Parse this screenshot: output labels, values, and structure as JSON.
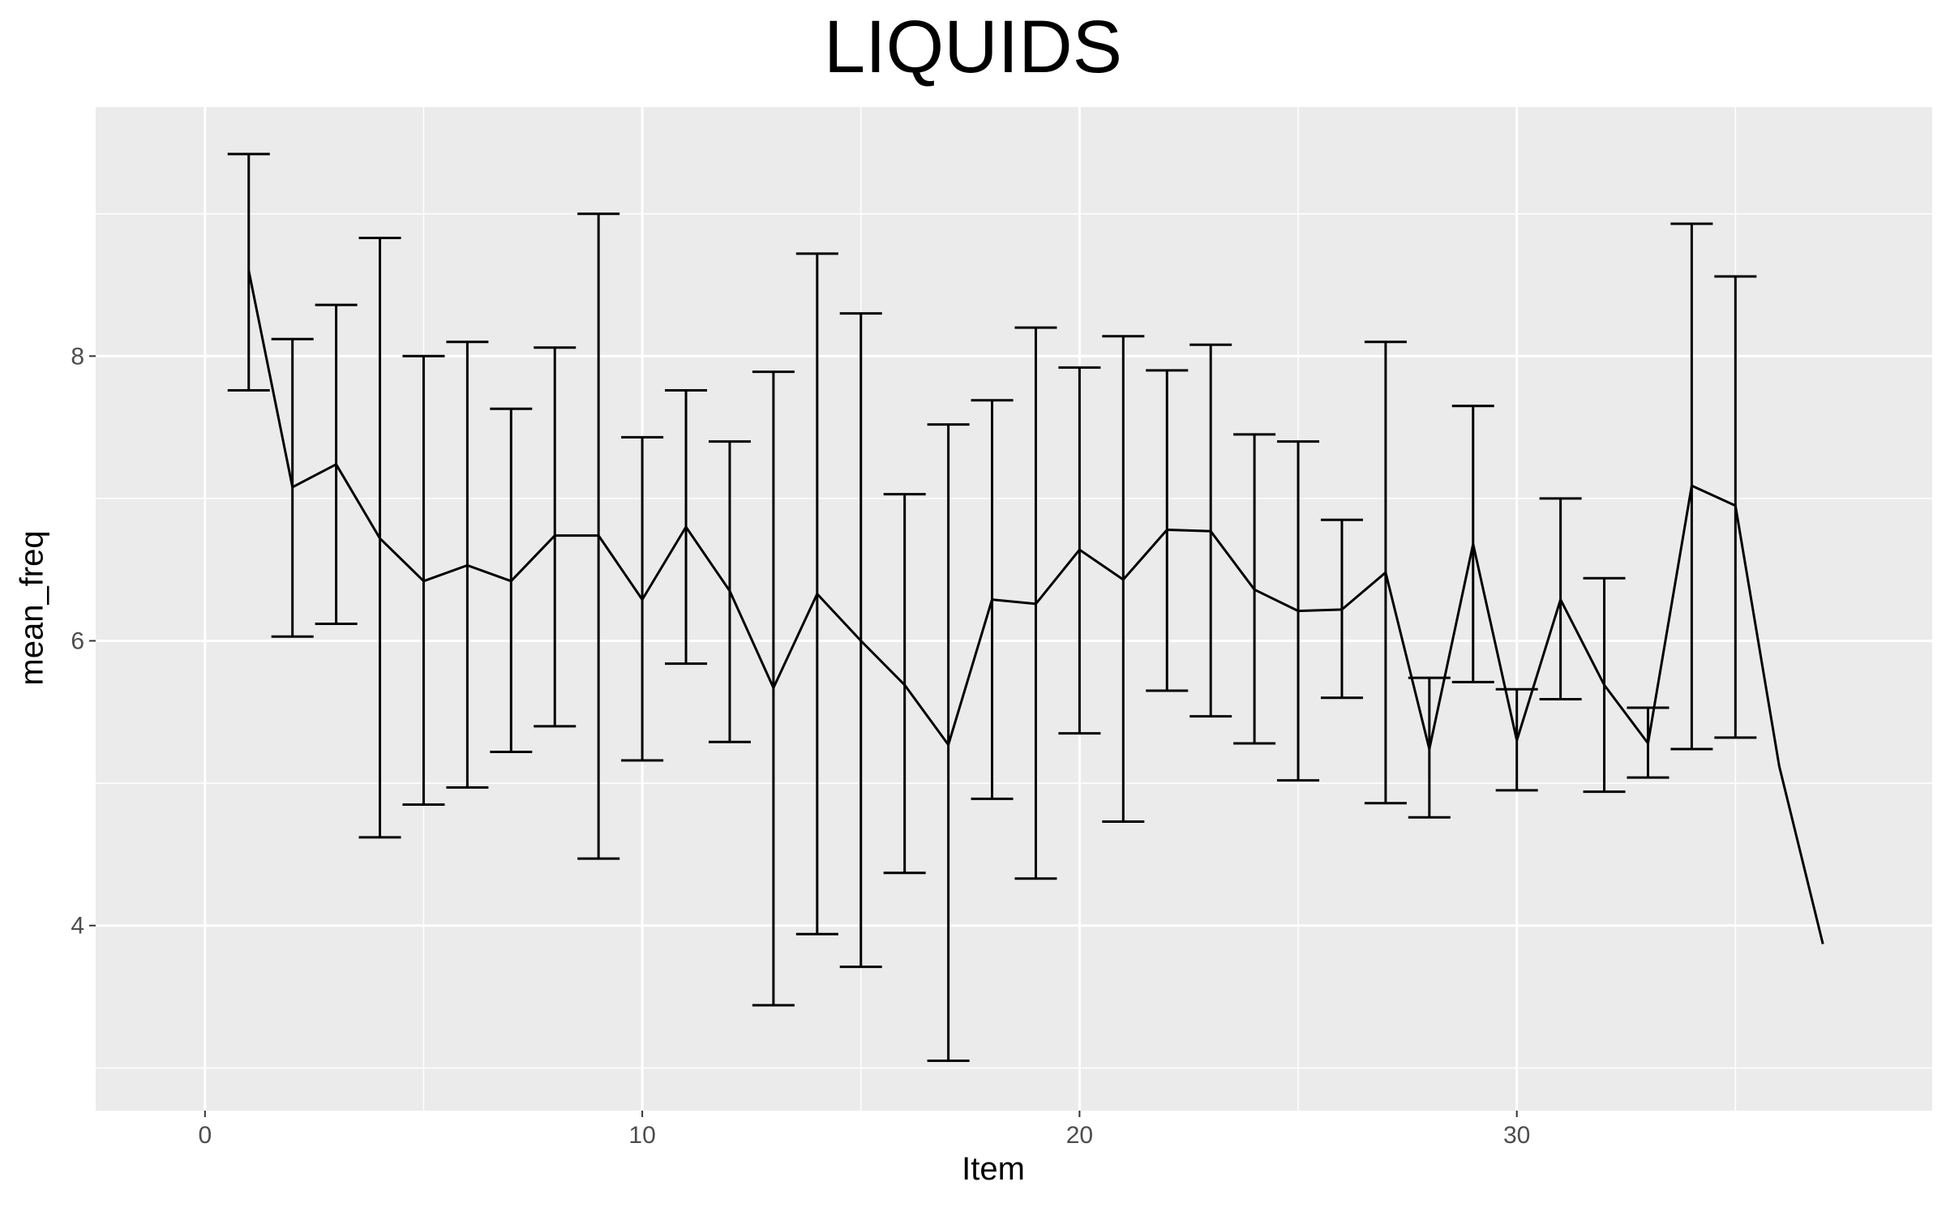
{
  "chart_data": {
    "type": "line",
    "title": "LIQUIDS",
    "xlabel": "Item",
    "ylabel": "mean_freq",
    "xlim": [
      -2.5,
      39.5
    ],
    "ylim": [
      2.7,
      9.75
    ],
    "x_ticks": [
      0,
      10,
      20,
      30
    ],
    "x_tick_labels": [
      "0",
      "10",
      "20",
      "30"
    ],
    "y_ticks": [
      4,
      6,
      8
    ],
    "y_tick_labels": [
      "4",
      "6",
      "8"
    ],
    "grid": true,
    "background": "#ebebeb",
    "grid_color": "#ffffff",
    "line_color": "#000000",
    "series": [
      {
        "x": [
          1,
          2,
          3,
          4,
          5,
          6,
          7,
          8,
          9,
          10,
          11,
          12,
          13,
          14,
          15,
          16,
          17,
          18,
          19,
          20,
          21,
          22,
          23,
          24,
          25,
          26,
          27,
          28,
          29,
          30,
          31,
          32,
          33,
          34,
          35,
          36,
          37
        ],
        "y": [
          8.6,
          7.08,
          7.24,
          6.72,
          6.42,
          6.53,
          6.42,
          6.74,
          6.74,
          6.29,
          6.8,
          6.35,
          5.67,
          6.33,
          6.0,
          5.69,
          5.27,
          6.29,
          6.26,
          6.64,
          6.43,
          6.78,
          6.77,
          6.36,
          6.21,
          6.22,
          6.48,
          5.24,
          6.68,
          5.3,
          6.29,
          5.69,
          5.28,
          7.09,
          6.95,
          5.12,
          3.87
        ],
        "err_low": [
          7.76,
          6.03,
          6.12,
          4.62,
          4.85,
          4.97,
          5.22,
          5.4,
          4.47,
          5.16,
          5.84,
          5.29,
          3.44,
          3.94,
          3.71,
          4.37,
          3.05,
          4.89,
          4.33,
          5.35,
          4.73,
          5.65,
          5.47,
          5.28,
          5.02,
          5.6,
          4.86,
          4.76,
          5.71,
          4.95,
          5.59,
          4.94,
          5.04,
          5.24,
          5.32,
          null,
          null
        ],
        "err_high": [
          9.42,
          8.12,
          8.36,
          8.83,
          8.0,
          8.1,
          7.63,
          8.06,
          9.0,
          7.43,
          7.76,
          7.4,
          7.89,
          8.72,
          8.3,
          7.03,
          7.52,
          7.69,
          8.2,
          7.92,
          8.14,
          7.9,
          8.08,
          7.45,
          7.4,
          6.85,
          8.1,
          5.74,
          7.65,
          5.66,
          7.0,
          6.44,
          5.53,
          8.93,
          8.56,
          null,
          null
        ]
      }
    ]
  }
}
